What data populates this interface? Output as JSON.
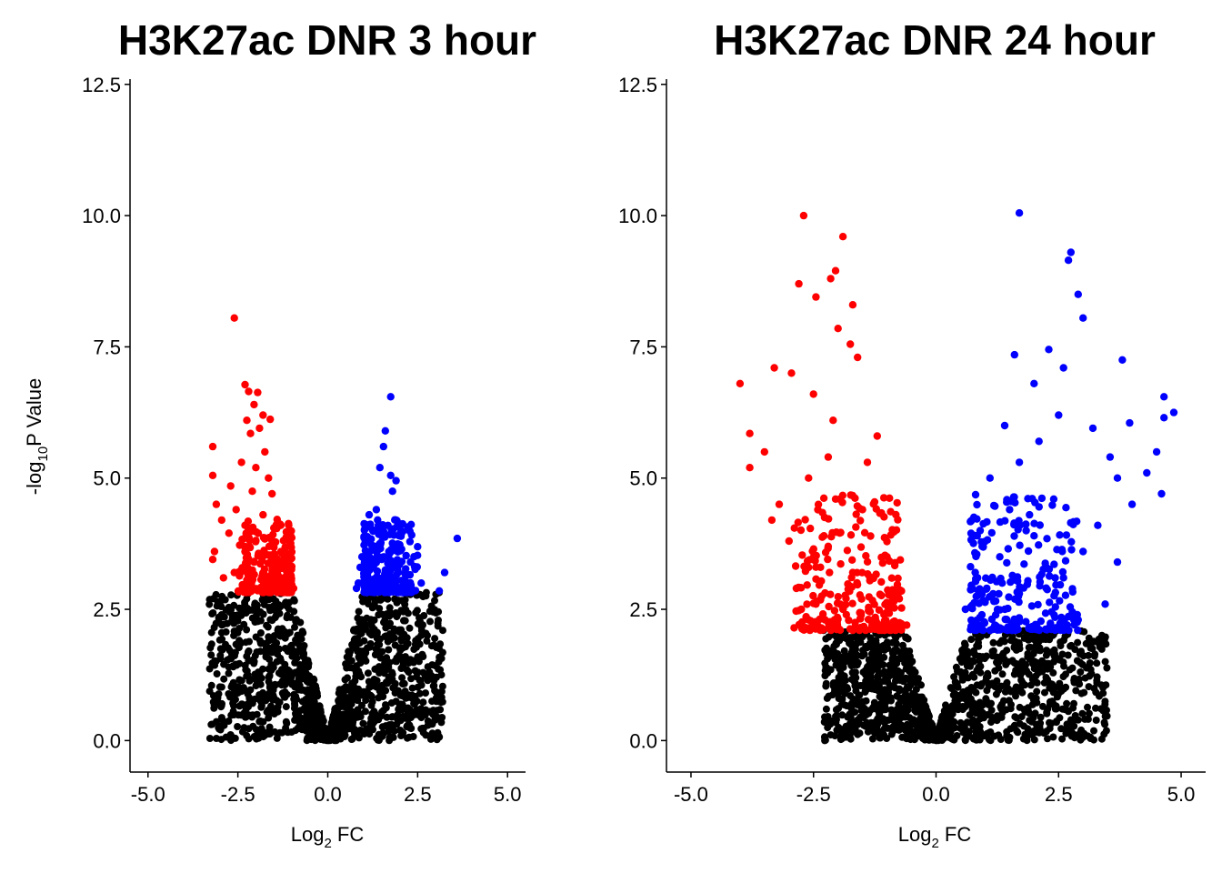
{
  "colors": {
    "down": "#ff0000",
    "up": "#0000ff",
    "ns": "#000000"
  },
  "chart_data": [
    {
      "type": "scatter",
      "title": "H3K27ac DNR 3 hour",
      "xlabel": {
        "base": "Log",
        "sub": "2",
        "rest": " FC"
      },
      "ylabel": {
        "base": "-log",
        "sub": "10",
        "rest": "P Value"
      },
      "xlim": [
        -5.5,
        5.5
      ],
      "ylim": [
        -0.6,
        12.6
      ],
      "xticks": [
        -5,
        -2.5,
        0,
        2.5,
        5
      ],
      "xtick_labels": [
        "-5.0",
        "-2.5",
        "0.0",
        "2.5",
        "5.0"
      ],
      "yticks": [
        0,
        2.5,
        5,
        7.5,
        10,
        12.5
      ],
      "ytick_labels": [
        "0.0",
        "2.5",
        "5.0",
        "7.5",
        "10.0",
        "12.5"
      ],
      "significance_threshold": 2.82,
      "series": [
        {
          "color": "#ff0000",
          "points": [
            [
              -2.6,
              8.05
            ],
            [
              -2.3,
              6.78
            ],
            [
              -2.2,
              6.65
            ],
            [
              -1.95,
              6.63
            ],
            [
              -2.05,
              6.4
            ],
            [
              -1.8,
              6.2
            ],
            [
              -1.6,
              6.12
            ],
            [
              -2.25,
              6.1
            ],
            [
              -1.9,
              5.95
            ],
            [
              -2.15,
              5.85
            ],
            [
              -3.2,
              5.6
            ],
            [
              -1.75,
              5.5
            ],
            [
              -2.4,
              5.3
            ],
            [
              -2.0,
              5.2
            ],
            [
              -3.2,
              5.05
            ],
            [
              -1.65,
              5.0
            ],
            [
              -2.7,
              4.85
            ],
            [
              -2.1,
              4.75
            ],
            [
              -1.55,
              4.7
            ],
            [
              -3.1,
              4.5
            ],
            [
              -2.55,
              4.4
            ],
            [
              -1.8,
              4.3
            ],
            [
              -2.95,
              4.2
            ],
            [
              -2.3,
              4.1
            ],
            [
              -1.5,
              4.05
            ],
            [
              -2.75,
              3.95
            ],
            [
              -3.15,
              3.6
            ],
            [
              -3.2,
              3.45
            ],
            [
              -2.05,
              3.4
            ],
            [
              -1.4,
              3.3
            ],
            [
              -2.6,
              3.2
            ],
            [
              -1.2,
              3.05
            ],
            [
              -2.3,
              2.95
            ],
            [
              -1.7,
              2.9
            ],
            [
              -0.95,
              2.9
            ],
            [
              -2.9,
              3.1
            ]
          ]
        },
        {
          "color": "#0000ff",
          "points": [
            [
              1.75,
              6.55
            ],
            [
              1.6,
              5.9
            ],
            [
              1.55,
              5.6
            ],
            [
              1.45,
              5.2
            ],
            [
              1.75,
              5.05
            ],
            [
              1.9,
              4.95
            ],
            [
              1.8,
              4.75
            ],
            [
              1.35,
              4.4
            ],
            [
              1.15,
              4.3
            ],
            [
              1.9,
              4.2
            ],
            [
              1.05,
              4.05
            ],
            [
              2.0,
              3.9
            ],
            [
              3.6,
              3.85
            ],
            [
              1.3,
              3.7
            ],
            [
              1.7,
              3.6
            ],
            [
              0.95,
              3.5
            ],
            [
              1.5,
              3.45
            ],
            [
              2.3,
              3.4
            ],
            [
              0.9,
              3.3
            ],
            [
              1.6,
              3.25
            ],
            [
              3.25,
              3.2
            ],
            [
              1.1,
              3.15
            ],
            [
              2.05,
              3.05
            ],
            [
              0.85,
              3.0
            ],
            [
              2.6,
              3.0
            ],
            [
              1.2,
              2.95
            ],
            [
              2.2,
              2.9
            ],
            [
              0.8,
              2.9
            ],
            [
              3.1,
              2.85
            ]
          ]
        }
      ]
    },
    {
      "type": "scatter",
      "title": "H3K27ac DNR 24 hour",
      "xlabel": {
        "base": "Log",
        "sub": "2",
        "rest": " FC"
      },
      "ylabel": null,
      "xlim": [
        -5.5,
        5.5
      ],
      "ylim": [
        -0.6,
        12.6
      ],
      "xticks": [
        -5,
        -2.5,
        0,
        2.5,
        5
      ],
      "xtick_labels": [
        "-5.0",
        "-2.5",
        "0.0",
        "2.5",
        "5.0"
      ],
      "yticks": [
        0,
        2.5,
        5,
        7.5,
        10,
        12.5
      ],
      "ytick_labels": [
        "0.0",
        "2.5",
        "5.0",
        "7.5",
        "10.0",
        "12.5"
      ],
      "significance_threshold": 2.1,
      "series": [
        {
          "color": "#ff0000",
          "points": [
            [
              -2.7,
              10.0
            ],
            [
              -1.9,
              9.6
            ],
            [
              -2.05,
              8.95
            ],
            [
              -2.15,
              8.8
            ],
            [
              -2.8,
              8.7
            ],
            [
              -2.45,
              8.45
            ],
            [
              -1.7,
              8.3
            ],
            [
              -2.0,
              7.85
            ],
            [
              -1.75,
              7.55
            ],
            [
              -1.6,
              7.3
            ],
            [
              -4.0,
              6.8
            ],
            [
              -3.3,
              7.1
            ],
            [
              -2.95,
              7.0
            ],
            [
              -2.5,
              6.6
            ],
            [
              -3.8,
              5.85
            ],
            [
              -2.1,
              6.1
            ],
            [
              -3.8,
              5.2
            ],
            [
              -3.5,
              5.5
            ],
            [
              -2.2,
              5.4
            ],
            [
              -1.4,
              5.3
            ],
            [
              -2.6,
              5.0
            ],
            [
              -1.2,
              5.8
            ],
            [
              -3.2,
              4.5
            ],
            [
              -3.35,
              4.2
            ],
            [
              -2.05,
              4.6
            ],
            [
              -1.5,
              4.4
            ],
            [
              -3.0,
              3.8
            ],
            [
              -2.2,
              3.7
            ],
            [
              -1.0,
              3.5
            ],
            [
              -2.6,
              3.3
            ],
            [
              -1.7,
              3.2
            ],
            [
              -2.85,
              2.9
            ],
            [
              -0.8,
              2.9
            ],
            [
              -2.75,
              2.5
            ],
            [
              -2.45,
              2.6
            ],
            [
              -1.9,
              2.5
            ],
            [
              -2.6,
              2.3
            ],
            [
              -0.6,
              2.2
            ],
            [
              -2.2,
              2.15
            ],
            [
              -1.2,
              2.15
            ]
          ]
        },
        {
          "color": "#0000ff",
          "points": [
            [
              1.7,
              10.05
            ],
            [
              2.75,
              9.3
            ],
            [
              2.7,
              9.15
            ],
            [
              2.9,
              8.5
            ],
            [
              3.0,
              8.05
            ],
            [
              2.3,
              7.45
            ],
            [
              1.6,
              7.35
            ],
            [
              3.8,
              7.25
            ],
            [
              2.6,
              7.1
            ],
            [
              2.0,
              6.8
            ],
            [
              4.65,
              6.55
            ],
            [
              4.85,
              6.25
            ],
            [
              2.5,
              6.2
            ],
            [
              4.65,
              6.15
            ],
            [
              3.95,
              6.05
            ],
            [
              3.2,
              5.95
            ],
            [
              1.4,
              6.0
            ],
            [
              2.1,
              5.7
            ],
            [
              4.5,
              5.5
            ],
            [
              3.55,
              5.4
            ],
            [
              1.7,
              5.3
            ],
            [
              4.3,
              5.1
            ],
            [
              3.7,
              5.0
            ],
            [
              1.1,
              5.0
            ],
            [
              4.6,
              4.7
            ],
            [
              2.4,
              4.6
            ],
            [
              4.0,
              4.5
            ],
            [
              1.5,
              4.4
            ],
            [
              3.3,
              4.1
            ],
            [
              0.9,
              4.0
            ],
            [
              2.0,
              3.9
            ],
            [
              3.0,
              3.6
            ],
            [
              1.3,
              3.5
            ],
            [
              3.7,
              3.4
            ],
            [
              2.6,
              3.1
            ],
            [
              0.8,
              3.2
            ],
            [
              1.7,
              2.8
            ],
            [
              3.45,
              2.6
            ],
            [
              0.6,
              2.5
            ],
            [
              2.9,
              2.3
            ],
            [
              1.2,
              2.2
            ]
          ]
        }
      ]
    }
  ]
}
